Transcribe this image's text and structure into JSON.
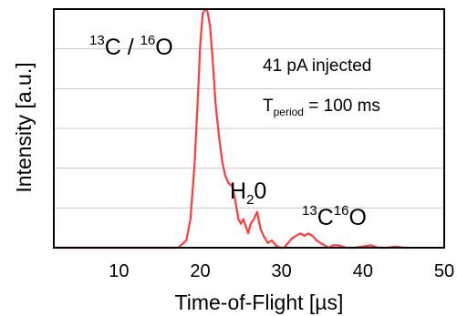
{
  "chart_data": {
    "type": "line",
    "xlabel": "Time-of-Flight [µs]",
    "ylabel": "Intensity [a.u.]",
    "xlim": [
      2,
      50
    ],
    "ylim": [
      0,
      1
    ],
    "x_ticks": [
      "10",
      "20",
      "30",
      "40",
      "50"
    ],
    "grid": "horizontal",
    "series": [
      {
        "color": "#ff3b3b",
        "x": [
          2,
          17.3,
          18.3,
          18.8,
          19.3,
          19.7,
          20.0,
          20.3,
          20.6,
          20.9,
          21.2,
          21.5,
          21.9,
          22.3,
          22.7,
          23.1,
          23.5,
          23.9,
          24.3,
          24.7,
          25.0,
          25.3,
          25.6,
          25.9,
          26.2,
          26.6,
          27.0,
          27.4,
          27.8,
          28.3,
          28.8,
          29.3,
          29.8,
          30.3,
          30.8,
          31.3,
          31.8,
          32.3,
          32.8,
          33.3,
          33.8,
          34.3,
          34.8,
          35.3,
          35.8,
          36.3,
          37.0,
          38.0,
          39.0,
          40.0,
          41.0,
          42.0,
          43.0,
          44.0,
          45.0,
          45.6
        ],
        "y": [
          0,
          0,
          0.03,
          0.12,
          0.35,
          0.62,
          0.85,
          0.98,
          1.0,
          0.99,
          0.93,
          0.8,
          0.6,
          0.47,
          0.36,
          0.3,
          0.27,
          0.26,
          0.2,
          0.12,
          0.1,
          0.12,
          0.09,
          0.06,
          0.1,
          0.12,
          0.15,
          0.08,
          0.05,
          0.02,
          0.03,
          0.01,
          0.0,
          0.0,
          0.02,
          0.04,
          0.05,
          0.06,
          0.05,
          0.06,
          0.05,
          0.03,
          0.02,
          0.01,
          0.0,
          0.01,
          0.01,
          0.0,
          0.0,
          0.005,
          0.01,
          0.0,
          0.0,
          0.005,
          0.0,
          0.0
        ]
      }
    ],
    "annotations": {
      "c13_o16": {
        "left": "13",
        "mid": "C / ",
        "right": "16",
        "end": "O"
      },
      "water": {
        "pre": "H",
        "sub": "2",
        "post": "0"
      },
      "c13o16": {
        "a": "13",
        "b": "C",
        "c": "16",
        "d": "O"
      },
      "injected": "41 pA injected",
      "period": {
        "pre": "T",
        "sub": "period",
        "post": " = 100 ms"
      }
    }
  }
}
